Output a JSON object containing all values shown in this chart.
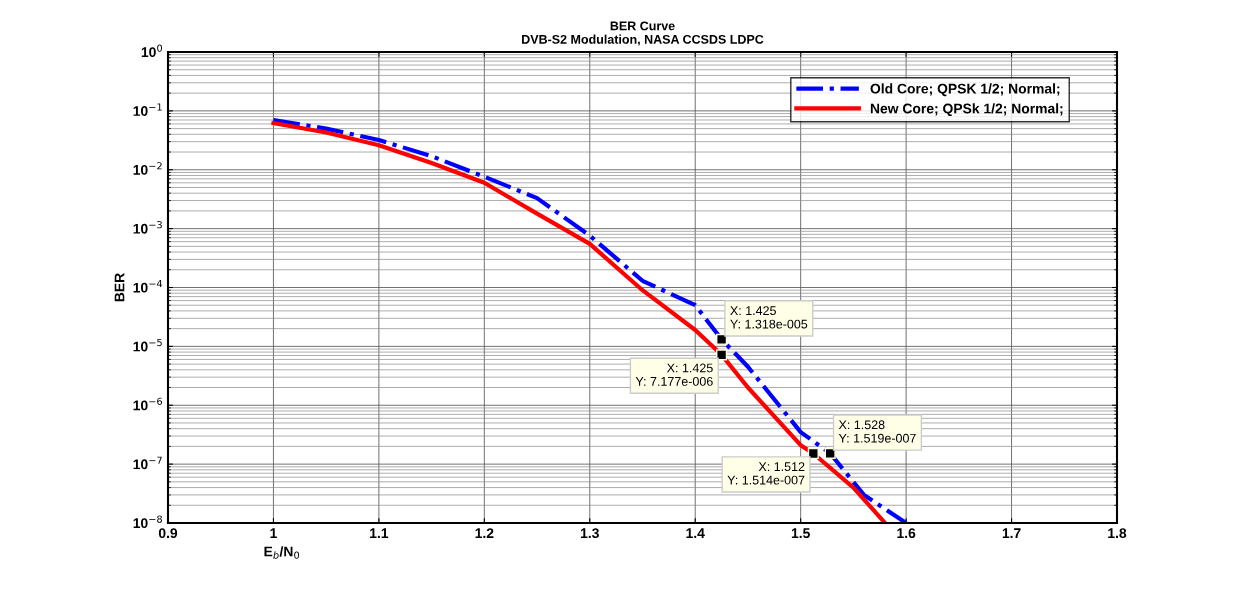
{
  "chart_data": {
    "type": "line",
    "title": "BER Curve",
    "subtitle": "DVB-S2 Modulation, NASA CCSDS LDPC",
    "xlabel": "E$_{b}$/N$_{0}$",
    "ylabel": "BER",
    "log": "y",
    "grid": true,
    "legend": "top right",
    "xlim": [
      0.9,
      1.8
    ],
    "xticks": [
      0.9,
      1,
      1.1,
      1.2,
      1.3,
      1.4,
      1.5,
      1.6,
      1.7,
      1.8
    ],
    "ylim": [
      1e-08,
      1
    ],
    "yticks": [
      {
        "value": 1e-08,
        "label": "10$^{−8}$"
      },
      {
        "value": 1e-07,
        "label": "10$^{−7}$"
      },
      {
        "value": 1e-06,
        "label": "10$^{−6}$"
      },
      {
        "value": 1e-05,
        "label": "10$^{−5}$"
      },
      {
        "value": 0.0001,
        "label": "10$^{−4}$"
      },
      {
        "value": 0.001,
        "label": "10$^{−3}$"
      },
      {
        "value": 0.01,
        "label": "10$^{−2}$"
      },
      {
        "value": 0.1,
        "label": "10$^{−1}$"
      },
      {
        "value": 1,
        "label": "10$^{0}$"
      }
    ],
    "series": [
      {
        "name": "Old Core; QPSK 1/2; Normal;",
        "color": "#0000ff",
        "line_style": "dashdot",
        "x": [
          1.0,
          1.05,
          1.1,
          1.15,
          1.2,
          1.25,
          1.3,
          1.35,
          1.4,
          1.425,
          1.45,
          1.5,
          1.528,
          1.56,
          1.6
        ],
        "values": [
          0.07,
          0.05,
          0.032,
          0.017,
          0.0076,
          0.0033,
          0.00076,
          0.00013,
          5e-05,
          1.318e-05,
          4.5e-06,
          3.5e-07,
          1.519e-07,
          3e-08,
          1e-08
        ]
      },
      {
        "name": "New Core; QPSk 1/2; Normal;",
        "color": "#ff0000",
        "line_style": "solid",
        "x": [
          1.0,
          1.05,
          1.1,
          1.15,
          1.2,
          1.25,
          1.3,
          1.35,
          1.4,
          1.425,
          1.45,
          1.5,
          1.512,
          1.55,
          1.58
        ],
        "values": [
          0.062,
          0.043,
          0.026,
          0.013,
          0.006,
          0.0018,
          0.00055,
          9e-05,
          1.9e-05,
          7.177e-06,
          2e-06,
          2.1e-07,
          1.514e-07,
          4e-08,
          1e-08
        ]
      }
    ],
    "annotations": [
      {
        "text": "X: 1.425\nY: 1.318e-005",
        "x": 1.425,
        "y": 1.318e-05
      },
      {
        "text": "X: 1.425\nY: 7.177e-006",
        "x": 1.425,
        "y": 7.177e-06
      },
      {
        "text": "X: 1.528\nY: 1.519e-007",
        "x": 1.528,
        "y": 1.519e-07
      },
      {
        "text": "X: 1.512\nY: 1.514e-007",
        "x": 1.512,
        "y": 1.514e-07
      }
    ]
  }
}
